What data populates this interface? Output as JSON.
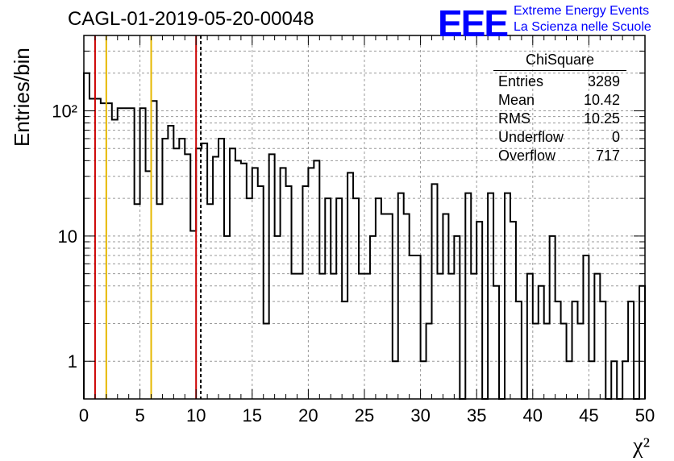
{
  "header": {
    "run_title": "CAGL-01-2019-05-20-00048",
    "logo_letters": "EEE",
    "logo_line1": "Extreme Energy Events",
    "logo_line2": "La Scienza nelle Scuole"
  },
  "stats_box": {
    "title": "ChiSquare",
    "rows": [
      {
        "label": "Entries",
        "value": "3289"
      },
      {
        "label": "Mean",
        "value": "10.42"
      },
      {
        "label": "RMS",
        "value": "10.25"
      },
      {
        "label": "Underflow",
        "value": "0"
      },
      {
        "label": "Overflow",
        "value": "717"
      }
    ]
  },
  "chart_data": {
    "type": "histogram",
    "title": "CAGL-01-2019-05-20-00048",
    "xlabel": "χ²",
    "ylabel": "Entries/bin",
    "xlim": [
      0,
      50
    ],
    "ylim": [
      0.5,
      400
    ],
    "yscale": "log",
    "grid": true,
    "bin_width": 0.5,
    "x_tick_labels": [
      "0",
      "5",
      "10",
      "15",
      "20",
      "25",
      "30",
      "35",
      "40",
      "45",
      "50"
    ],
    "y_tick_labels": [
      "1",
      "10",
      "10²"
    ],
    "counts": [
      200,
      125,
      125,
      115,
      115,
      85,
      105,
      105,
      105,
      18,
      105,
      33,
      120,
      18,
      60,
      76,
      50,
      60,
      45,
      11,
      50,
      55,
      18,
      43,
      60,
      10,
      50,
      40,
      38,
      20,
      35,
      25,
      2,
      45,
      10,
      35,
      25,
      5,
      5,
      25,
      35,
      40,
      5,
      20,
      5,
      20,
      3,
      32,
      20,
      5,
      5,
      10,
      20,
      15,
      15,
      1,
      22,
      15,
      7,
      7,
      1,
      2,
      26,
      5,
      15,
      5,
      10,
      0.5,
      22,
      5,
      13,
      0.5,
      22,
      4,
      0.5,
      22,
      13,
      3,
      0.5,
      5,
      2,
      4,
      2,
      10,
      3,
      2,
      1,
      3,
      2,
      7,
      1,
      5,
      3,
      0.5,
      1,
      0.5,
      1,
      3,
      0.5,
      4
    ],
    "vertical_lines": [
      {
        "x": 1,
        "color": "#cc0000",
        "style": "solid"
      },
      {
        "x": 2,
        "color": "#e6b800",
        "style": "solid"
      },
      {
        "x": 6,
        "color": "#e6b800",
        "style": "solid"
      },
      {
        "x": 10,
        "color": "#cc0000",
        "style": "solid"
      },
      {
        "x": 10.42,
        "color": "#000000",
        "style": "dashed"
      }
    ],
    "legend": "top-right"
  }
}
